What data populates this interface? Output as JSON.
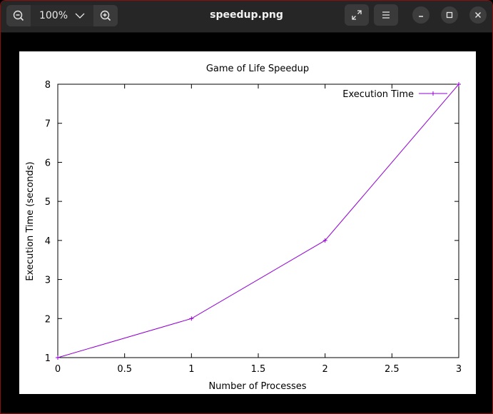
{
  "window": {
    "title": "speedup.png",
    "zoom_label": "100%"
  },
  "icons": {
    "zoom_out": "zoom-out-icon",
    "zoom_in": "zoom-in-icon",
    "dropdown": "chevron-down-icon",
    "fullscreen": "fullscreen-icon",
    "menu": "hamburger-menu-icon",
    "minimize": "minimize-icon",
    "maximize": "maximize-icon",
    "close": "close-icon"
  },
  "colors": {
    "series": "#9400d3",
    "headerbar": "#262626"
  },
  "chart_data": {
    "type": "line",
    "title": "Game of Life Speedup",
    "xlabel": "Number of Processes",
    "ylabel": "Execution Time (seconds)",
    "xlim": [
      0,
      3
    ],
    "ylim": [
      1,
      8
    ],
    "xticks": [
      "0",
      "0.5",
      "1",
      "1.5",
      "2",
      "2.5",
      "3"
    ],
    "yticks": [
      "1",
      "2",
      "3",
      "4",
      "5",
      "6",
      "7",
      "8"
    ],
    "legend_position": "top-right",
    "grid": false,
    "series": [
      {
        "name": "Execution Time",
        "x": [
          0,
          1,
          2,
          3
        ],
        "y": [
          1,
          2,
          4,
          8
        ]
      }
    ]
  }
}
